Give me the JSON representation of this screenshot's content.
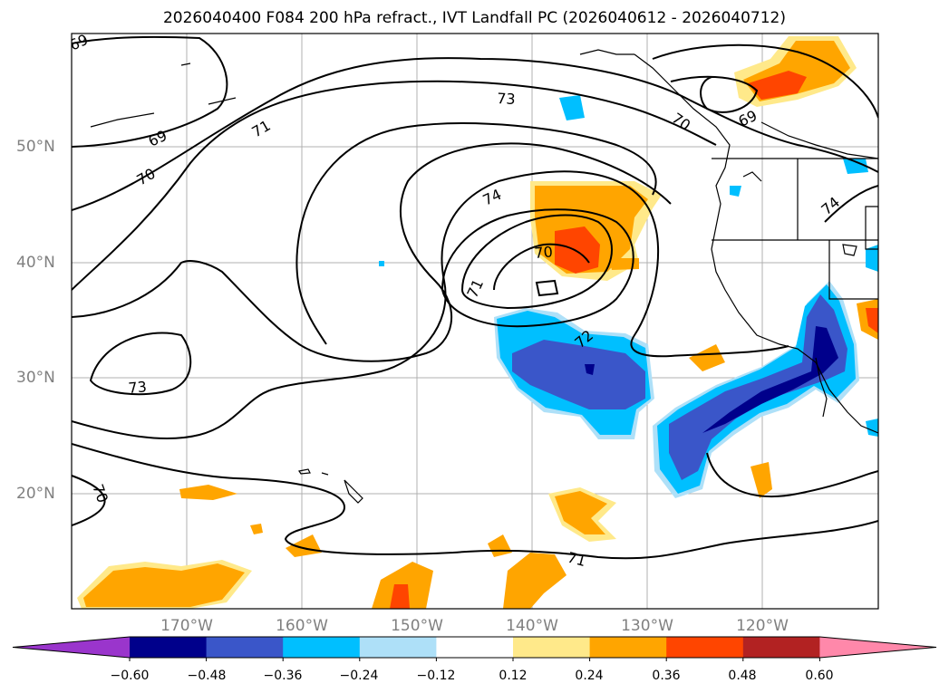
{
  "title": "2026040400 F084 200 hPa refract., IVT Landfall PC (2026040612 - 2026040712)",
  "lat_labels": [
    "50°N",
    "40°N",
    "30°N",
    "20°N"
  ],
  "lon_labels": [
    "170°W",
    "160°W",
    "150°W",
    "140°W",
    "130°W",
    "120°W"
  ],
  "colorbar": {
    "ticks": [
      "−0.60",
      "−0.48",
      "−0.36",
      "−0.24",
      "−0.12",
      "0.12",
      "0.24",
      "0.36",
      "0.48",
      "0.60"
    ],
    "colors": [
      "#9a35cc",
      "#00008b",
      "#3a56c9",
      "#00bfff",
      "#aee0f8",
      "#ffffff",
      "#ffe98a",
      "#ffa500",
      "#ff4500",
      "#b22222",
      "#ff88aa"
    ]
  },
  "contour_labels": [
    "69",
    "69",
    "70",
    "71",
    "73",
    "74",
    "70",
    "71",
    "72",
    "73",
    "70",
    "71",
    "70",
    "69",
    "74"
  ]
}
